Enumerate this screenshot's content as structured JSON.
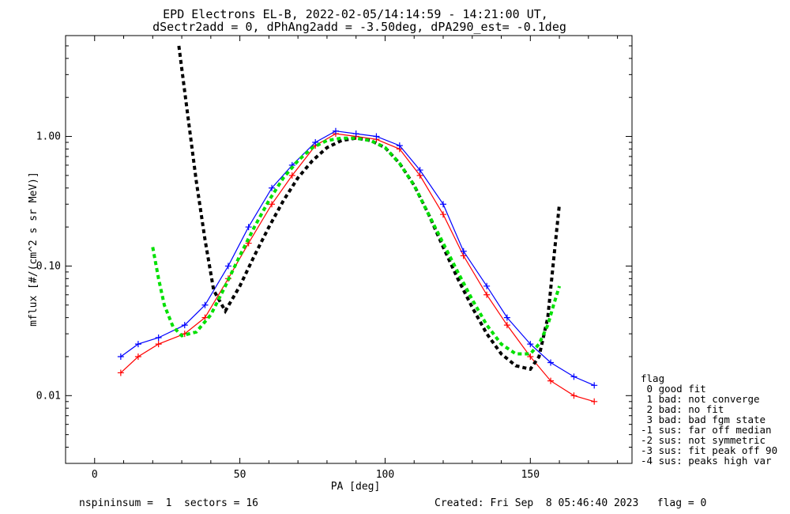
{
  "chart_data": {
    "type": "line",
    "title": "EPD Electrons EL-B, 2022-02-05/14:14:59 - 14:21:00 UT,",
    "subtitle": "dSectr2add = 0, dPhAng2add = -3.50deg, dPA290_est=  -0.1deg",
    "xlabel": "PA [deg]",
    "ylabel": "mflux [#/(cm^2 s sr MeV)]",
    "xlim": [
      -10,
      185
    ],
    "ylim": [
      0.003,
      6.0
    ],
    "yscale": "log",
    "xticks": [
      {
        "value": 0,
        "label": "0"
      },
      {
        "value": 50,
        "label": "50"
      },
      {
        "value": 100,
        "label": "100"
      },
      {
        "value": 150,
        "label": "150"
      }
    ],
    "yticks": [
      {
        "value": 0.01,
        "label": "0.01"
      },
      {
        "value": 0.1,
        "label": "0.10"
      },
      {
        "value": 1.0,
        "label": "1.00"
      }
    ],
    "series": [
      {
        "color": "#ff0000",
        "marker": "+",
        "style": "solid",
        "x": [
          9,
          15,
          22,
          31,
          38,
          46,
          53,
          61,
          68,
          76,
          83,
          90,
          97,
          105,
          112,
          120,
          127,
          135,
          142,
          150,
          157,
          165,
          172
        ],
        "y": [
          0.015,
          0.02,
          0.025,
          0.03,
          0.04,
          0.08,
          0.15,
          0.3,
          0.5,
          0.85,
          1.05,
          1.0,
          0.95,
          0.8,
          0.5,
          0.25,
          0.12,
          0.06,
          0.035,
          0.02,
          0.013,
          0.01,
          0.009
        ]
      },
      {
        "color": "#0000ff",
        "marker": "+",
        "style": "solid",
        "x": [
          9,
          15,
          22,
          31,
          38,
          46,
          53,
          61,
          68,
          76,
          83,
          90,
          97,
          105,
          112,
          120,
          127,
          135,
          142,
          150,
          157,
          165,
          172
        ],
        "y": [
          0.02,
          0.025,
          0.028,
          0.035,
          0.05,
          0.1,
          0.2,
          0.4,
          0.6,
          0.9,
          1.1,
          1.05,
          1.0,
          0.85,
          0.55,
          0.3,
          0.13,
          0.07,
          0.04,
          0.025,
          0.018,
          0.014,
          0.012
        ]
      },
      {
        "color": "#000000",
        "style": "dashed",
        "x": [
          29,
          32,
          35,
          38,
          41,
          45,
          50,
          55,
          60,
          65,
          70,
          75,
          80,
          85,
          90,
          95,
          100,
          105,
          110,
          115,
          120,
          125,
          130,
          135,
          140,
          145,
          150,
          153,
          156,
          158,
          160
        ],
        "y": [
          5.0,
          1.5,
          0.45,
          0.16,
          0.065,
          0.045,
          0.07,
          0.12,
          0.2,
          0.32,
          0.48,
          0.65,
          0.82,
          0.93,
          0.97,
          0.93,
          0.82,
          0.62,
          0.42,
          0.25,
          0.14,
          0.08,
          0.048,
          0.03,
          0.021,
          0.017,
          0.016,
          0.02,
          0.04,
          0.11,
          0.3
        ]
      },
      {
        "color": "#00e000",
        "style": "dashed",
        "x": [
          20,
          22,
          24,
          27,
          30,
          35,
          40,
          45,
          50,
          55,
          60,
          65,
          70,
          75,
          80,
          85,
          90,
          95,
          100,
          105,
          110,
          115,
          120,
          125,
          130,
          135,
          140,
          145,
          150,
          153,
          156,
          158,
          160
        ],
        "y": [
          0.14,
          0.08,
          0.05,
          0.034,
          0.029,
          0.031,
          0.042,
          0.07,
          0.12,
          0.2,
          0.32,
          0.48,
          0.65,
          0.82,
          0.93,
          0.97,
          0.97,
          0.93,
          0.82,
          0.62,
          0.42,
          0.25,
          0.15,
          0.09,
          0.055,
          0.035,
          0.025,
          0.021,
          0.021,
          0.025,
          0.035,
          0.05,
          0.07
        ]
      }
    ]
  },
  "legend": {
    "title": "flag",
    "entries": [
      " 0 good fit",
      " 1 bad: not converge",
      " 2 bad: no fit",
      " 3 bad: bad fgm state",
      "-1 sus: far off median",
      "-2 sus: not symmetric",
      "-3 sus: fit peak off 90",
      "-4 sus: peaks high var"
    ]
  },
  "footer": {
    "left": "nspininsum =  1  sectors = 16",
    "right": "Created: Fri Sep  8 05:46:40 2023   flag = 0"
  }
}
